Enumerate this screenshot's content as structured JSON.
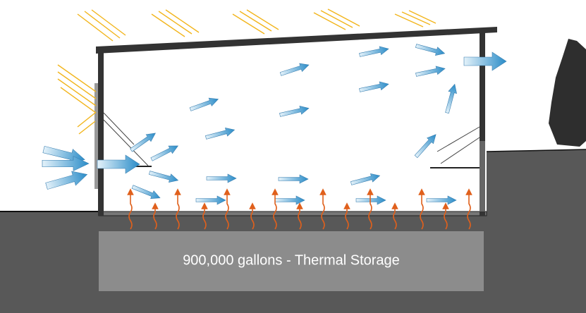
{
  "storage": {
    "label": "900,000 gallons - Thermal Storage"
  }
}
